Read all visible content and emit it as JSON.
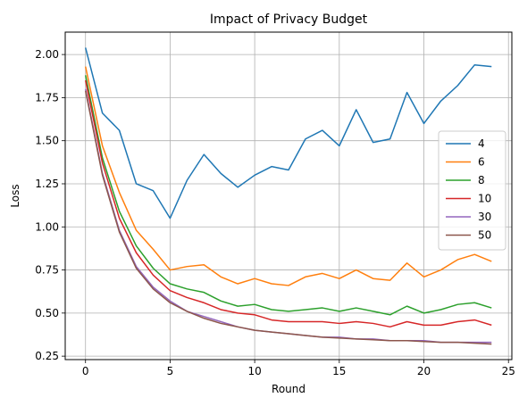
{
  "chart_data": {
    "type": "line",
    "title": "Impact of Privacy Budget",
    "xlabel": "Round",
    "ylabel": "Loss",
    "xlim": [
      -1.2,
      25.2
    ],
    "ylim": [
      0.23,
      2.13
    ],
    "xticks": [
      0,
      5,
      10,
      15,
      20,
      25
    ],
    "yticks": [
      0.25,
      0.5,
      0.75,
      1.0,
      1.25,
      1.5,
      1.75,
      2.0
    ],
    "ytick_labels": [
      "0.25",
      "0.50",
      "0.75",
      "1.00",
      "1.25",
      "1.50",
      "1.75",
      "2.00"
    ],
    "grid": true,
    "legend_position": "center-right",
    "x": [
      0,
      1,
      2,
      3,
      4,
      5,
      6,
      7,
      8,
      9,
      10,
      11,
      12,
      13,
      14,
      15,
      16,
      17,
      18,
      19,
      20,
      21,
      22,
      23,
      24
    ],
    "series": [
      {
        "name": "4",
        "color": "#1f77b4",
        "values": [
          2.04,
          1.66,
          1.56,
          1.25,
          1.21,
          1.05,
          1.27,
          1.42,
          1.31,
          1.23,
          1.3,
          1.35,
          1.33,
          1.51,
          1.56,
          1.47,
          1.68,
          1.49,
          1.51,
          1.78,
          1.6,
          1.73,
          1.82,
          1.94,
          1.93
        ]
      },
      {
        "name": "6",
        "color": "#ff7f0e",
        "values": [
          1.93,
          1.47,
          1.2,
          0.98,
          0.87,
          0.75,
          0.77,
          0.78,
          0.71,
          0.67,
          0.7,
          0.67,
          0.66,
          0.71,
          0.73,
          0.7,
          0.75,
          0.7,
          0.69,
          0.79,
          0.71,
          0.75,
          0.81,
          0.84,
          0.8
        ]
      },
      {
        "name": "8",
        "color": "#2ca02c",
        "values": [
          1.88,
          1.4,
          1.09,
          0.89,
          0.76,
          0.67,
          0.64,
          0.62,
          0.57,
          0.54,
          0.55,
          0.52,
          0.51,
          0.52,
          0.53,
          0.51,
          0.53,
          0.51,
          0.49,
          0.54,
          0.5,
          0.52,
          0.55,
          0.56,
          0.53
        ]
      },
      {
        "name": "10",
        "color": "#d62728",
        "values": [
          1.85,
          1.37,
          1.05,
          0.85,
          0.72,
          0.63,
          0.59,
          0.56,
          0.52,
          0.5,
          0.49,
          0.46,
          0.45,
          0.45,
          0.45,
          0.44,
          0.45,
          0.44,
          0.42,
          0.45,
          0.43,
          0.43,
          0.45,
          0.46,
          0.43
        ]
      },
      {
        "name": "30",
        "color": "#9467bd",
        "values": [
          1.8,
          1.31,
          0.98,
          0.77,
          0.65,
          0.57,
          0.51,
          0.48,
          0.45,
          0.42,
          0.4,
          0.39,
          0.38,
          0.37,
          0.36,
          0.36,
          0.35,
          0.35,
          0.34,
          0.34,
          0.34,
          0.33,
          0.33,
          0.33,
          0.33
        ]
      },
      {
        "name": "50",
        "color": "#8c564b",
        "values": [
          1.79,
          1.3,
          0.97,
          0.76,
          0.64,
          0.56,
          0.51,
          0.47,
          0.44,
          0.42,
          0.4,
          0.39,
          0.38,
          0.37,
          0.36,
          0.355,
          0.35,
          0.345,
          0.34,
          0.34,
          0.335,
          0.33,
          0.33,
          0.325,
          0.32
        ]
      }
    ]
  }
}
